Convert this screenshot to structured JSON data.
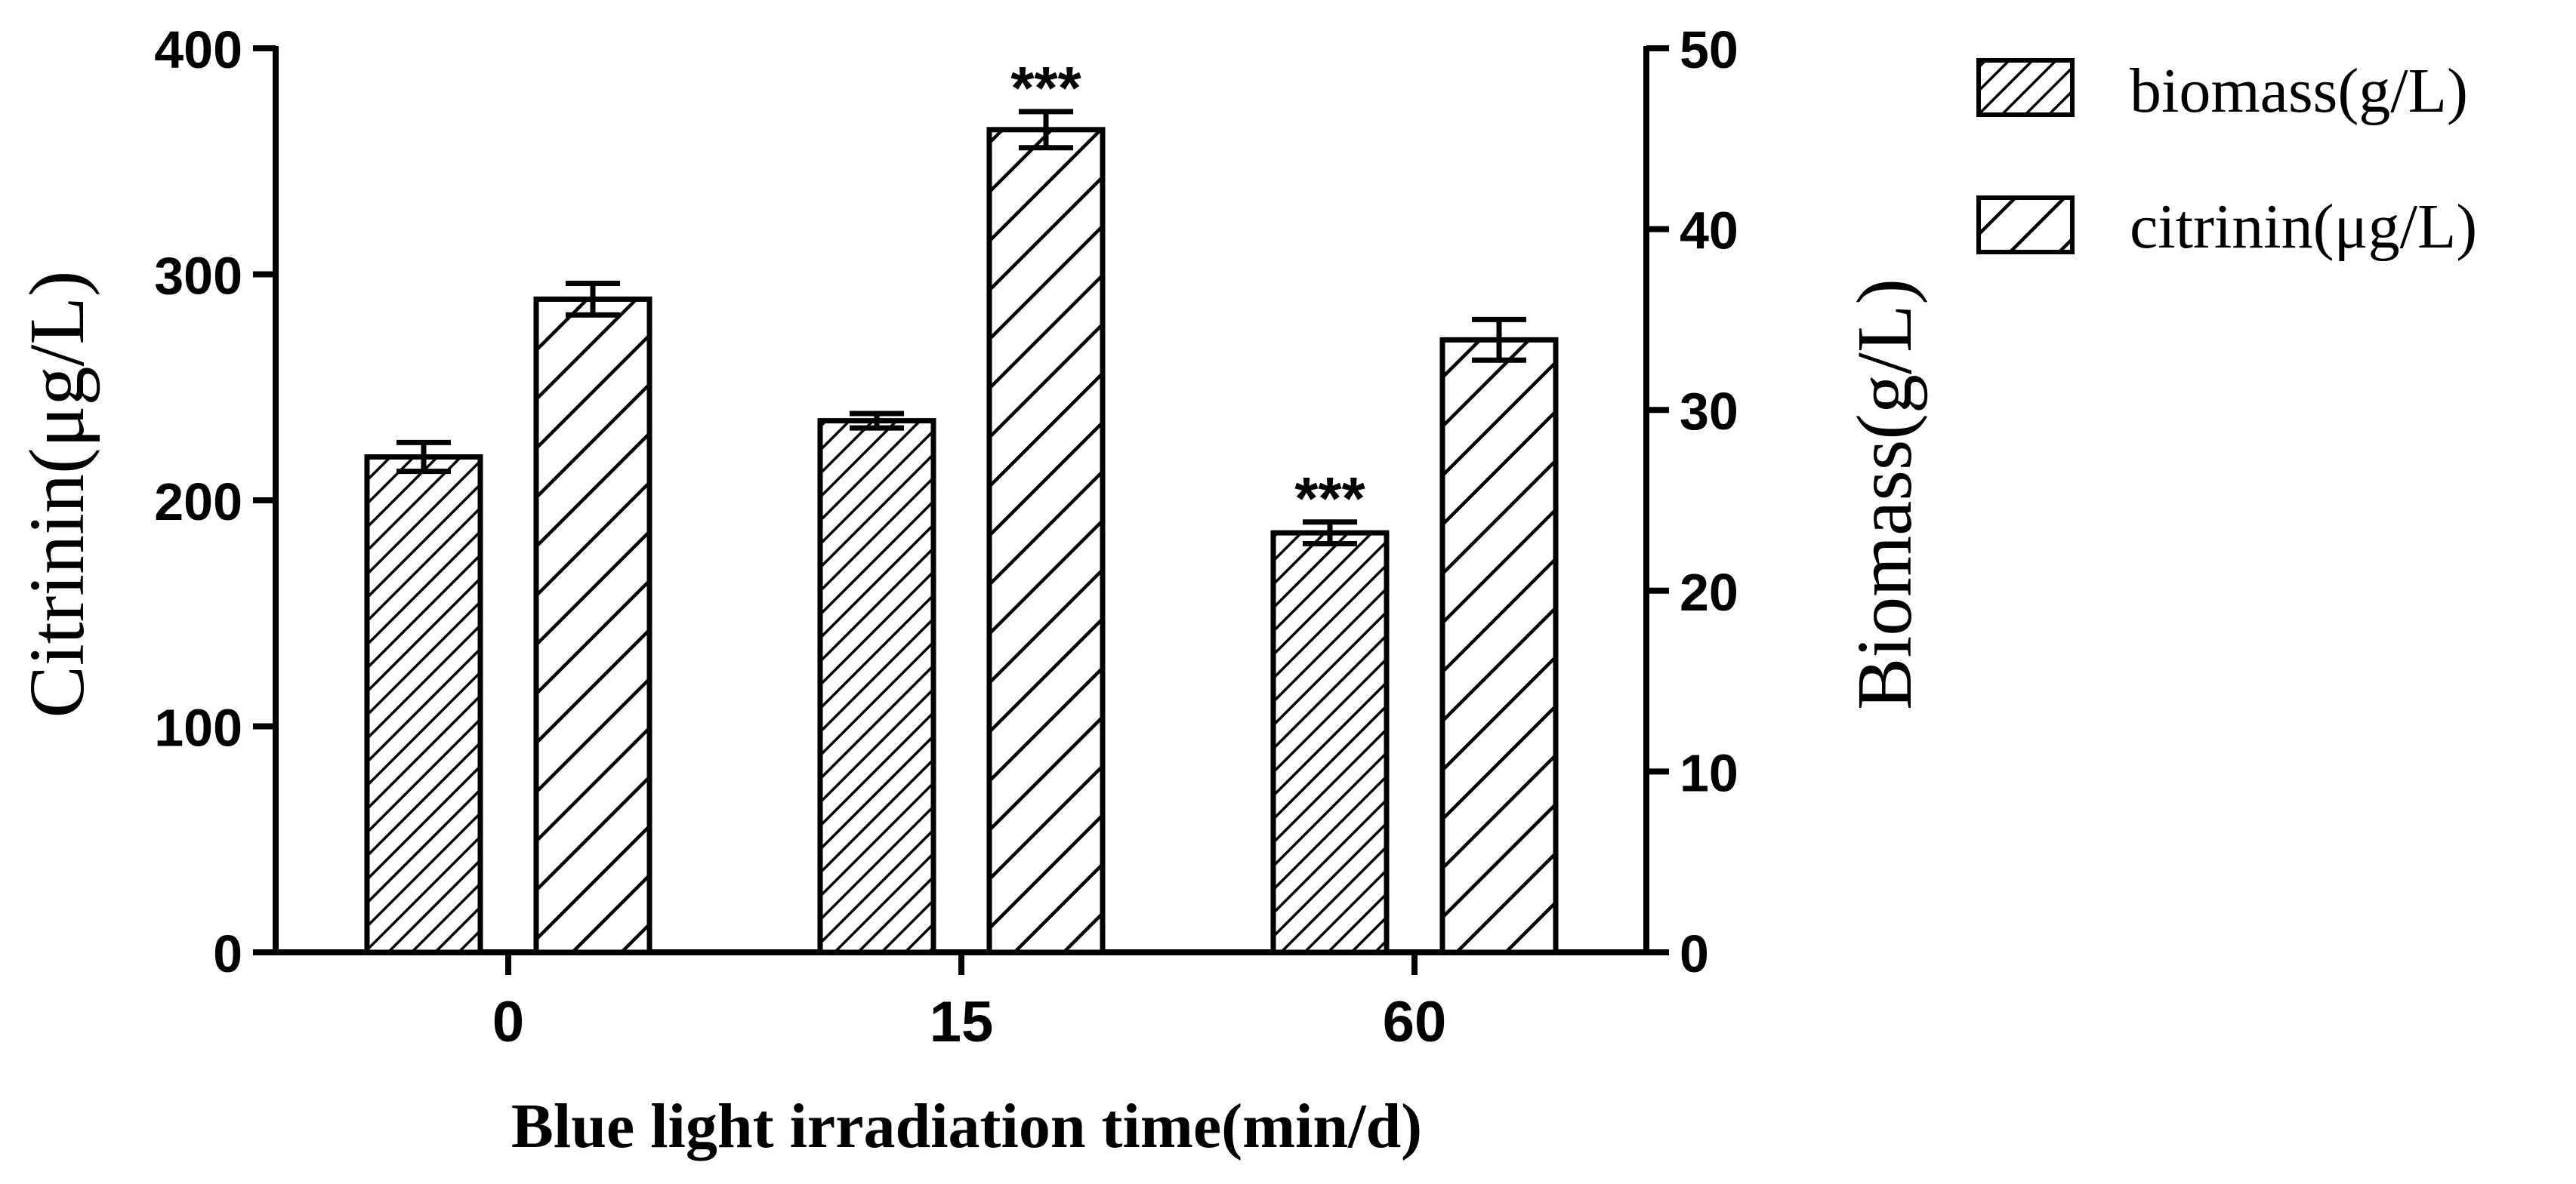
{
  "chart_data": {
    "type": "bar",
    "xlabel": "Blue light irradiation time(min/d)",
    "categories": [
      "0",
      "15",
      "60"
    ],
    "left_axis": {
      "label": "Citrinin(μg/L)",
      "range": [
        0,
        400
      ],
      "ticks": [
        "0",
        "100",
        "200",
        "300",
        "400"
      ]
    },
    "right_axis": {
      "label": "Biomass(g/L)",
      "range": [
        0,
        50
      ],
      "ticks": [
        "0",
        "10",
        "20",
        "30",
        "40",
        "50"
      ]
    },
    "series": [
      {
        "name": "biomass(g/L)",
        "axis": "right",
        "pattern": "fine-hatch",
        "values": [
          27.4,
          29.4,
          23.2
        ],
        "errors": [
          0.8,
          0.4,
          0.6
        ],
        "annotations": [
          "",
          "",
          "***"
        ]
      },
      {
        "name": "citrinin(μg/L)",
        "axis": "left",
        "pattern": "coarse-hatch",
        "values": [
          289,
          364,
          271
        ],
        "errors": [
          7,
          8,
          9
        ],
        "annotations": [
          "",
          "***",
          ""
        ]
      }
    ],
    "legend_position": "top-right",
    "grid": false
  }
}
